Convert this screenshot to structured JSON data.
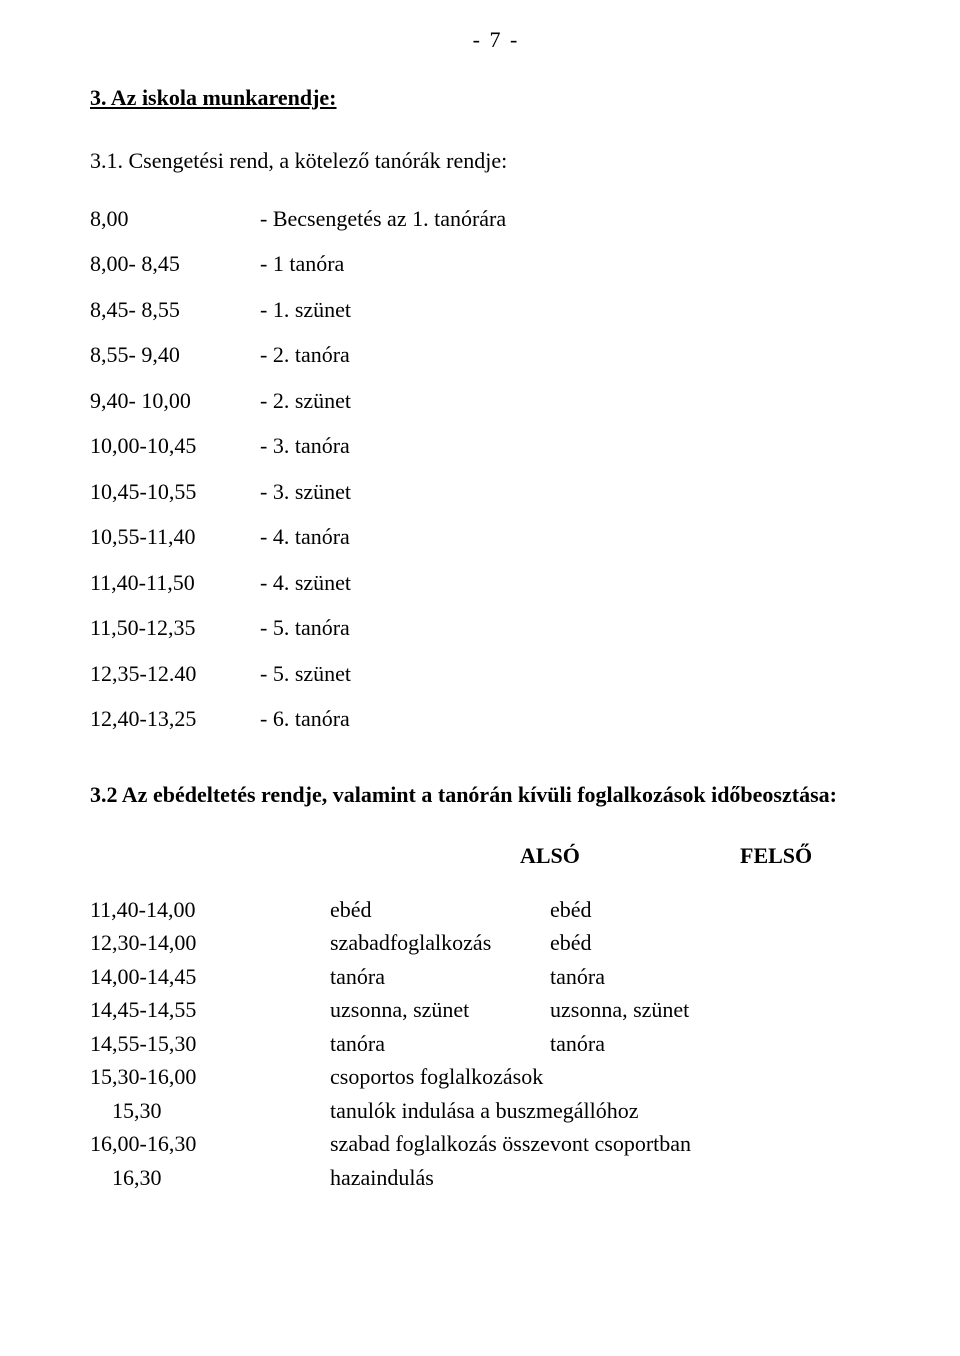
{
  "page_number": "-   7  -",
  "section_title": "3.  Az iskola munkarendje:",
  "subsection_31": "3.1.  Csengetési rend, a kötelező tanórák rendje:",
  "schedule": [
    {
      "time": "8,00",
      "desc": "- Becsengetés az 1. tanórára"
    },
    {
      "time": "8,00- 8,45",
      "desc": "- 1 tanóra"
    },
    {
      "time": "8,45- 8,55",
      "desc": "- 1. szünet"
    },
    {
      "time": "8,55- 9,40",
      "desc": "- 2. tanóra"
    },
    {
      "time": "9,40- 10,00",
      "desc": "- 2. szünet"
    },
    {
      "time": "10,00-10,45",
      "desc": "- 3. tanóra"
    },
    {
      "time": "10,45-10,55",
      "desc": "- 3. szünet"
    },
    {
      "time": "10,55-11,40",
      "desc": "- 4. tanóra"
    },
    {
      "time": "11,40-11,50",
      "desc": "- 4. szünet"
    },
    {
      "time": "11,50-12,35",
      "desc": "- 5. tanóra"
    },
    {
      "time": "12,35-12.40",
      "desc": "- 5. szünet"
    },
    {
      "time": "12,40-13,25",
      "desc": "- 6. tanóra"
    }
  ],
  "subsection_32": "3.2  Az ebédeltetés rendje, valamint a tanórán kívüli foglalkozások időbeosztása:",
  "col_also": "ALSÓ",
  "col_felso": "FELSŐ",
  "afternoon": [
    {
      "time": "11,40-14,00",
      "also": "ebéd",
      "felso": "ebéd",
      "merged": false
    },
    {
      "time": "12,30-14,00",
      "also": "szabadfoglalkozás",
      "felso": "ebéd",
      "merged": false
    },
    {
      "time": "14,00-14,45",
      "also": "tanóra",
      "felso": "tanóra",
      "merged": false
    },
    {
      "time": "14,45-14,55",
      "also": "uzsonna, szünet",
      "felso": "uzsonna, szünet",
      "merged": false
    },
    {
      "time": "14,55-15,30",
      "also": "tanóra",
      "felso": "tanóra",
      "merged": false
    },
    {
      "time": "15,30-16,00",
      "also": "csoportos foglalkozások",
      "felso": "",
      "merged": true
    },
    {
      "time": "15,30",
      "also": "tanulók indulása a buszmegállóhoz",
      "felso": "",
      "merged": true,
      "indent": true
    },
    {
      "time": "16,00-16,30",
      "also": "szabad foglalkozás összevont csoportban",
      "felso": "",
      "merged": true
    },
    {
      "time": "16,30",
      "also": "hazaindulás",
      "felso": "",
      "merged": true,
      "indent": true
    }
  ]
}
